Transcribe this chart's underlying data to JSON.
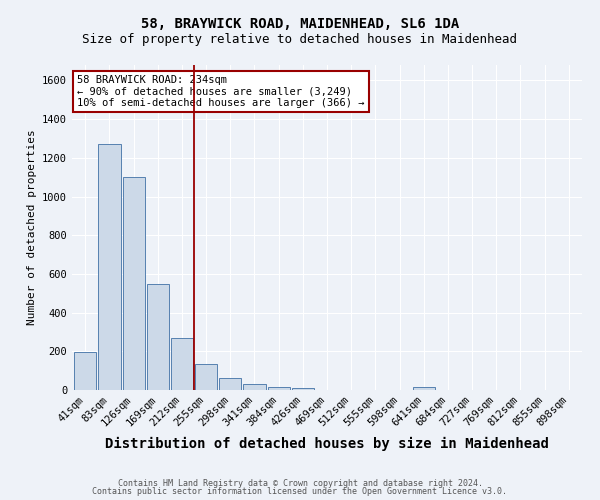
{
  "title": "58, BRAYWICK ROAD, MAIDENHEAD, SL6 1DA",
  "subtitle": "Size of property relative to detached houses in Maidenhead",
  "xlabel": "Distribution of detached houses by size in Maidenhead",
  "ylabel": "Number of detached properties",
  "footer1": "Contains HM Land Registry data © Crown copyright and database right 2024.",
  "footer2": "Contains public sector information licensed under the Open Government Licence v3.0.",
  "bins": [
    "41sqm",
    "83sqm",
    "126sqm",
    "169sqm",
    "212sqm",
    "255sqm",
    "298sqm",
    "341sqm",
    "384sqm",
    "426sqm",
    "469sqm",
    "512sqm",
    "555sqm",
    "598sqm",
    "641sqm",
    "684sqm",
    "727sqm",
    "769sqm",
    "812sqm",
    "855sqm",
    "898sqm"
  ],
  "values": [
    197,
    1270,
    1100,
    550,
    270,
    135,
    62,
    33,
    18,
    12,
    0,
    0,
    0,
    0,
    13,
    0,
    0,
    0,
    0,
    0,
    0
  ],
  "bar_color": "#ccd9e8",
  "bar_edge_color": "#5580b0",
  "vline_x": 4.5,
  "vline_color": "#990000",
  "annotation_text": "58 BRAYWICK ROAD: 234sqm\n← 90% of detached houses are smaller (3,249)\n10% of semi-detached houses are larger (366) →",
  "annotation_box_color": "white",
  "annotation_box_edge": "#990000",
  "ylim": [
    0,
    1680
  ],
  "yticks": [
    0,
    200,
    400,
    600,
    800,
    1000,
    1200,
    1400,
    1600
  ],
  "background_color": "#eef2f8",
  "grid_color": "white",
  "title_fontsize": 10,
  "subtitle_fontsize": 9,
  "xlabel_fontsize": 10,
  "ylabel_fontsize": 8,
  "tick_fontsize": 7.5,
  "annotation_fontsize": 7.5
}
